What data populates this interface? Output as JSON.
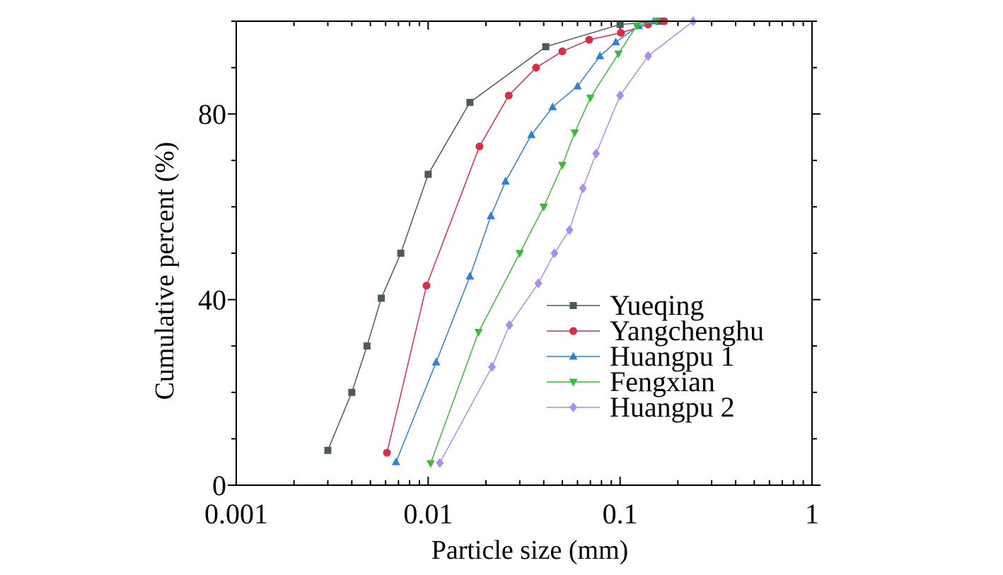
{
  "chart_data": {
    "type": "line",
    "title": "",
    "xlabel": "Particle size (mm)",
    "ylabel": "Cumulative percent (%)",
    "xscale": "log",
    "xlim": [
      0.001,
      1
    ],
    "ylim": [
      0,
      100
    ],
    "xticks": [
      0.001,
      0.01,
      0.1,
      1
    ],
    "xtick_labels": [
      "0.001",
      "0.01",
      "0.1",
      "1"
    ],
    "yticks": [
      0,
      40,
      80
    ],
    "ytick_labels": [
      "0",
      "40",
      "80"
    ],
    "grid": false,
    "legend_position": "bottom-right",
    "series": [
      {
        "name": "Yueqing",
        "color": "#4d5a5a",
        "marker": "square",
        "points": [
          [
            0.003,
            7.5
          ],
          [
            0.004,
            20
          ],
          [
            0.0048,
            30
          ],
          [
            0.0057,
            40.3
          ],
          [
            0.0072,
            50
          ],
          [
            0.01,
            67
          ],
          [
            0.0165,
            82.5
          ],
          [
            0.041,
            94.5
          ],
          [
            0.1,
            99.3
          ],
          [
            0.16,
            100
          ]
        ]
      },
      {
        "name": "Yangchenghu",
        "color": "#d62f47",
        "marker": "circle",
        "points": [
          [
            0.0061,
            7
          ],
          [
            0.0098,
            43
          ],
          [
            0.0185,
            73
          ],
          [
            0.0263,
            84
          ],
          [
            0.0365,
            90
          ],
          [
            0.05,
            93.5
          ],
          [
            0.069,
            96
          ],
          [
            0.101,
            97.5
          ],
          [
            0.14,
            99.3
          ],
          [
            0.17,
            100
          ]
        ]
      },
      {
        "name": "Huangpu 1",
        "color": "#2f80d8",
        "marker": "triangle-up",
        "points": [
          [
            0.0068,
            5
          ],
          [
            0.011,
            26.5
          ],
          [
            0.0165,
            45
          ],
          [
            0.0212,
            58
          ],
          [
            0.0253,
            65.5
          ],
          [
            0.0345,
            75.5
          ],
          [
            0.0445,
            81.5
          ],
          [
            0.06,
            86
          ],
          [
            0.0785,
            92.5
          ],
          [
            0.095,
            95.5
          ],
          [
            0.125,
            99
          ],
          [
            0.15,
            100
          ]
        ]
      },
      {
        "name": "Fengxian",
        "color": "#3cba3c",
        "marker": "triangle-down",
        "points": [
          [
            0.0103,
            4.7
          ],
          [
            0.0183,
            33
          ],
          [
            0.03,
            50
          ],
          [
            0.04,
            60
          ],
          [
            0.05,
            69
          ],
          [
            0.058,
            76
          ],
          [
            0.07,
            83.5
          ],
          [
            0.098,
            93
          ],
          [
            0.122,
            99
          ],
          [
            0.155,
            100
          ]
        ]
      },
      {
        "name": "Huangpu 2",
        "color": "#a98ef0",
        "marker": "diamond",
        "points": [
          [
            0.0115,
            4.8
          ],
          [
            0.0215,
            25.5
          ],
          [
            0.0265,
            34.5
          ],
          [
            0.0375,
            43.5
          ],
          [
            0.0455,
            50
          ],
          [
            0.0545,
            55
          ],
          [
            0.064,
            64
          ],
          [
            0.075,
            71.5
          ],
          [
            0.1,
            84
          ],
          [
            0.14,
            92.5
          ],
          [
            0.24,
            100
          ]
        ]
      }
    ]
  }
}
